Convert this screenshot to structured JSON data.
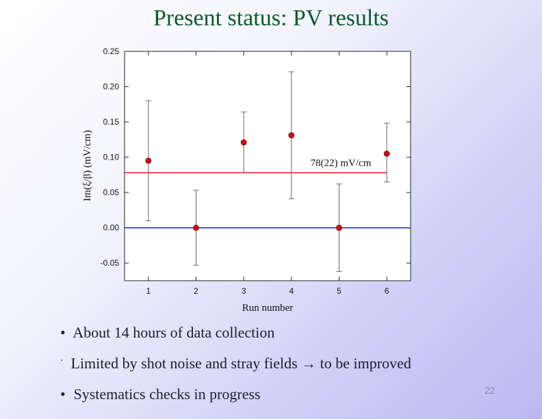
{
  "slide": {
    "title": "Present status: PV results",
    "number": "22"
  },
  "bullets": [
    "About 14 hours of data collection",
    "Limited by shot noise and stray fields → to be improved",
    "Systematics checks in progress"
  ],
  "bullet_markers": [
    "•",
    "·",
    "•"
  ],
  "chart_data": {
    "type": "scatter",
    "title": "",
    "xlabel": "Run number",
    "ylabel": "Im(ξ/β) (mV/cm)",
    "xlim": [
      0.5,
      6.5
    ],
    "ylim": [
      -0.075,
      0.25
    ],
    "xticks": [
      1,
      2,
      3,
      4,
      5,
      6
    ],
    "yticks": [
      -0.05,
      0.0,
      0.05,
      0.1,
      0.15,
      0.2,
      0.25
    ],
    "ytick_labels": [
      "-0.05",
      "0.00",
      "0.05",
      "0.10",
      "0.15",
      "0.20",
      "0.25"
    ],
    "grid": false,
    "series": [
      {
        "x": [
          1,
          2,
          3,
          4,
          5,
          6
        ],
        "y": [
          0.095,
          0.0,
          0.121,
          0.131,
          0.0,
          0.105
        ],
        "yerr_low": [
          0.085,
          0.053,
          0.043,
          0.09,
          0.062,
          0.04
        ],
        "yerr_high": [
          0.085,
          0.053,
          0.043,
          0.09,
          0.062,
          0.043
        ],
        "color": "#cc1111"
      }
    ],
    "reference_lines": [
      {
        "y": 0.078,
        "color": "#ee2222",
        "label": "78(22) mV/cm"
      },
      {
        "y": 0.0,
        "color": "#2233cc"
      }
    ]
  }
}
